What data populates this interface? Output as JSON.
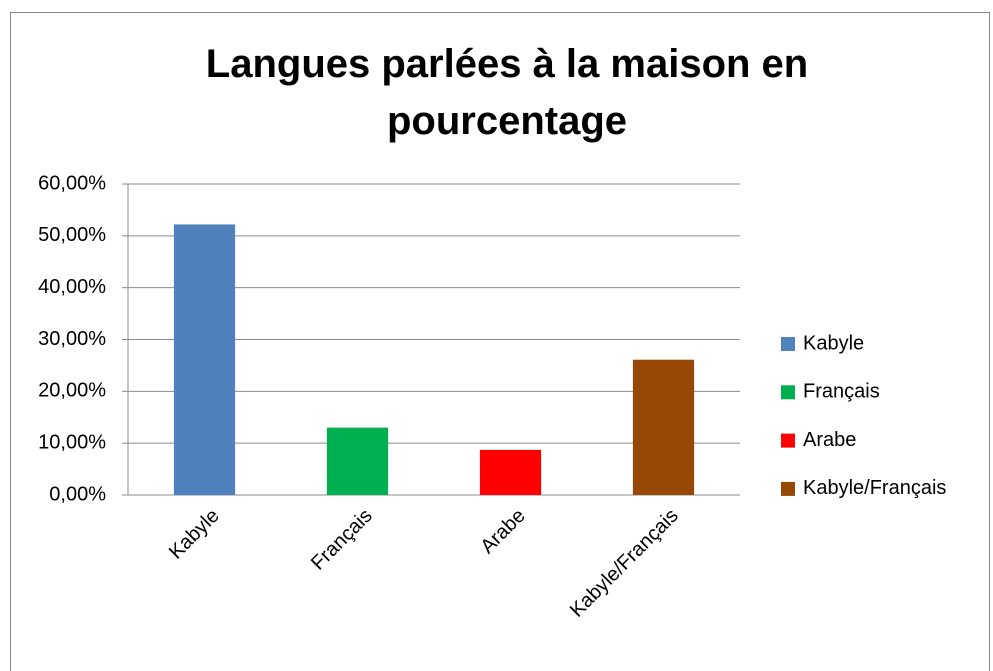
{
  "chart_data": {
    "type": "bar",
    "title": "Langues parlées à la maison en pourcentage",
    "categories": [
      "Kabyle",
      "Français",
      "Arabe",
      "Kabyle/Français"
    ],
    "values": [
      52.2,
      13,
      8.7,
      26.1
    ],
    "colors": [
      "#4f81bd",
      "#00b050",
      "#ff0000",
      "#974706"
    ],
    "ylim": [
      0,
      60
    ],
    "yticks": [
      {
        "value": 0,
        "label": "0,00%"
      },
      {
        "value": 10,
        "label": "10,00%"
      },
      {
        "value": 20,
        "label": "20,00%"
      },
      {
        "value": 30,
        "label": "30,00%"
      },
      {
        "value": 40,
        "label": "40,00%"
      },
      {
        "value": 50,
        "label": "50,00%"
      },
      {
        "value": 60,
        "label": "60,00%"
      }
    ],
    "grid": true,
    "legend": "right"
  }
}
